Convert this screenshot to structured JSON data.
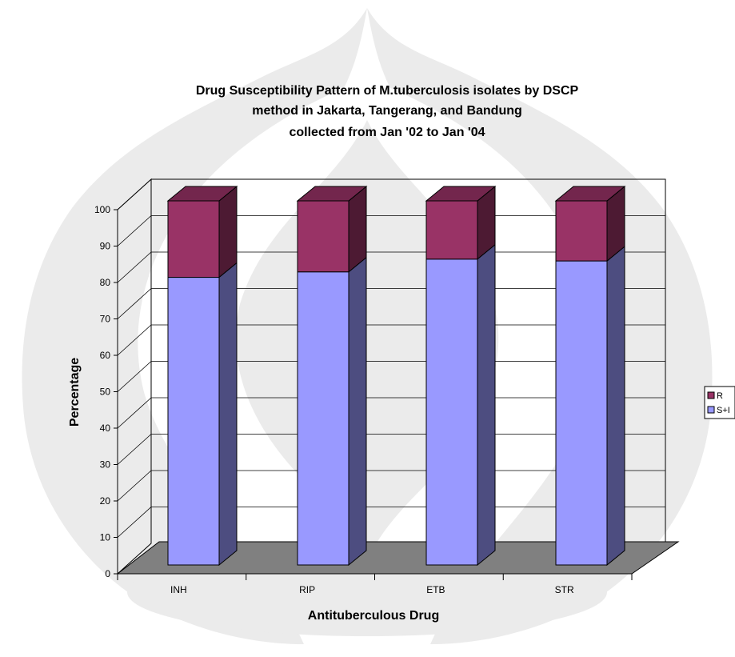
{
  "chart_data": {
    "type": "bar",
    "stacked": true,
    "three_d": true,
    "title_lines": [
      "Drug Susceptibility Pattern of M.tuberculosis isolates by DSCP",
      "method  in Jakarta, Tangerang, and Bandung",
      "collected from Jan '02 to Jan '04"
    ],
    "xlabel": "Antituberculous Drug",
    "ylabel": "Percentage",
    "categories": [
      "INH",
      "RIP",
      "ETB",
      "STR"
    ],
    "series": [
      {
        "name": "S+I",
        "values": [
          79,
          80.5,
          84,
          83.5
        ],
        "color": "#9999FF"
      },
      {
        "name": "R",
        "values": [
          21,
          19.5,
          16,
          16.5
        ],
        "color": "#993366"
      }
    ],
    "ylim": [
      0,
      100
    ],
    "yticks": [
      0,
      10,
      20,
      30,
      40,
      50,
      60,
      70,
      80,
      90,
      100
    ],
    "grid": true,
    "legend_position": "right",
    "legend_order": [
      "R",
      "S+I"
    ],
    "floor_color": "#808080",
    "watermark": true
  }
}
